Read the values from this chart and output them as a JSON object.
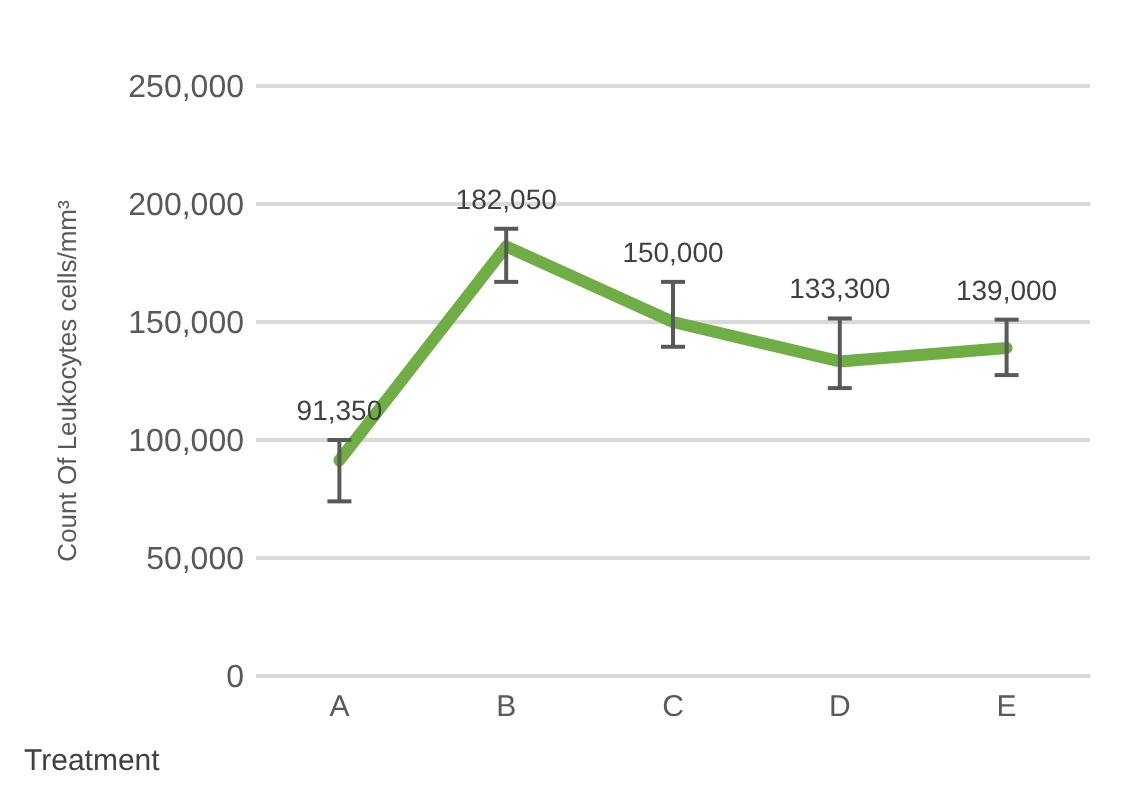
{
  "chart_data": {
    "type": "line",
    "xlabel": "Treatment",
    "ylabel": "Count Of Leukocytes cells/mm³",
    "categories": [
      "A",
      "B",
      "C",
      "D",
      "E"
    ],
    "series": [
      {
        "color": "#70ad47",
        "values": [
          91350,
          182050,
          150000,
          133300,
          139000
        ],
        "value_labels": [
          "91,350",
          "182,050",
          "150,000",
          "133,300",
          "139,000"
        ],
        "errors": [
          [
            74000,
            100000
          ],
          [
            167000,
            189500
          ],
          [
            139500,
            167000
          ],
          [
            122000,
            151500
          ],
          [
            127500,
            151000
          ]
        ]
      }
    ],
    "ylim": [
      0,
      250000
    ],
    "yticks": [
      {
        "value": 0,
        "label": "0"
      },
      {
        "value": 50000,
        "label": "50,000"
      },
      {
        "value": 100000,
        "label": "100,000"
      },
      {
        "value": 150000,
        "label": "150,000"
      },
      {
        "value": 200000,
        "label": "200,000"
      },
      {
        "value": 250000,
        "label": "250,000"
      }
    ],
    "grid": "y",
    "line_style": "solid",
    "marker": "none"
  }
}
